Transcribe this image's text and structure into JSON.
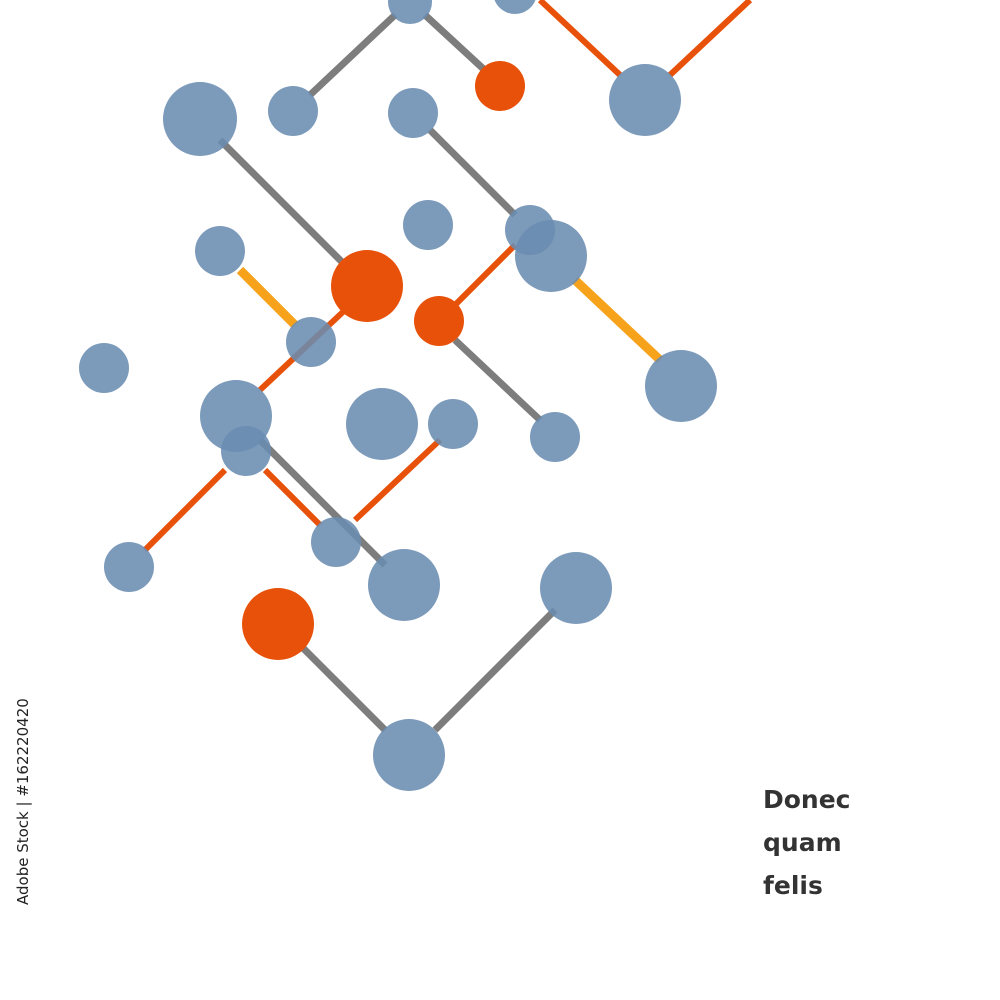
{
  "text": {
    "lines": [
      "Donec",
      "quam",
      "felis"
    ]
  },
  "watermark": "Adobe Stock | #162220420"
}
